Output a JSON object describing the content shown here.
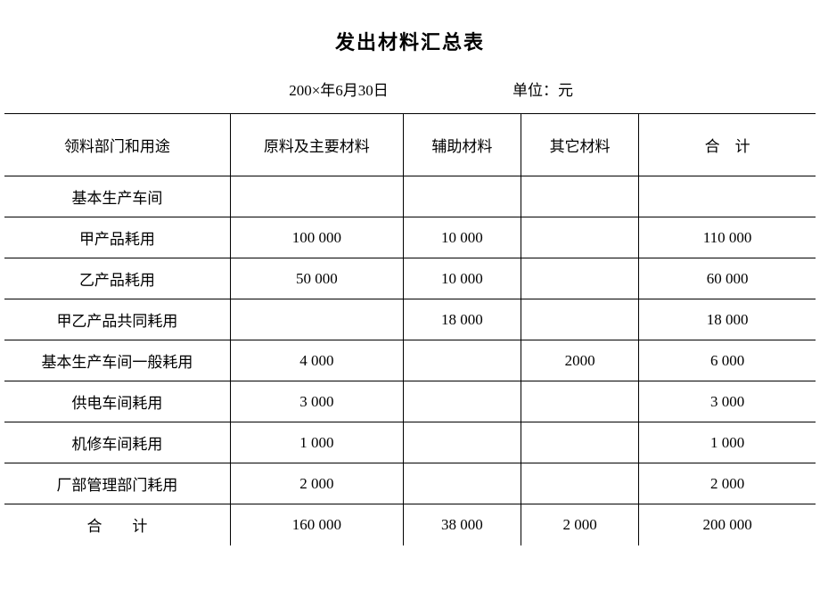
{
  "title": "发出材料汇总表",
  "header": {
    "date": "200×年6月30日",
    "unit": "单位：元"
  },
  "columns": {
    "dept": "领料部门和用途",
    "raw": "原料及主要材料",
    "aux": "辅助材料",
    "other": "其它材料",
    "total": "合　计"
  },
  "rows": [
    {
      "dept": "基本生产车间",
      "raw": "",
      "aux": "",
      "other": "",
      "total": ""
    },
    {
      "dept": "甲产品耗用",
      "raw": "100 000",
      "aux": "10 000",
      "other": "",
      "total": "110 000"
    },
    {
      "dept": "乙产品耗用",
      "raw": "50 000",
      "aux": "10 000",
      "other": "",
      "total": "60 000"
    },
    {
      "dept": "甲乙产品共同耗用",
      "raw": "",
      "aux": "18 000",
      "other": "",
      "total": "18 000"
    },
    {
      "dept": "基本生产车间一般耗用",
      "raw": "4 000",
      "aux": "",
      "other": "2000",
      "total": "6 000"
    },
    {
      "dept": "供电车间耗用",
      "raw": "3 000",
      "aux": "",
      "other": "",
      "total": "3 000"
    },
    {
      "dept": "机修车间耗用",
      "raw": "1 000",
      "aux": "",
      "other": "",
      "total": "1 000"
    },
    {
      "dept": "厂部管理部门耗用",
      "raw": "2 000",
      "aux": "",
      "other": "",
      "total": "2 000"
    },
    {
      "dept": "合　　计",
      "raw": "160 000",
      "aux": "38 000",
      "other": "2 000",
      "total": "200 000"
    }
  ],
  "style": {
    "background_color": "#ffffff",
    "text_color": "#000000",
    "border_color": "#000000",
    "title_fontsize": 22,
    "body_fontsize": 17,
    "header_row_height": 70,
    "body_row_height": 46
  }
}
